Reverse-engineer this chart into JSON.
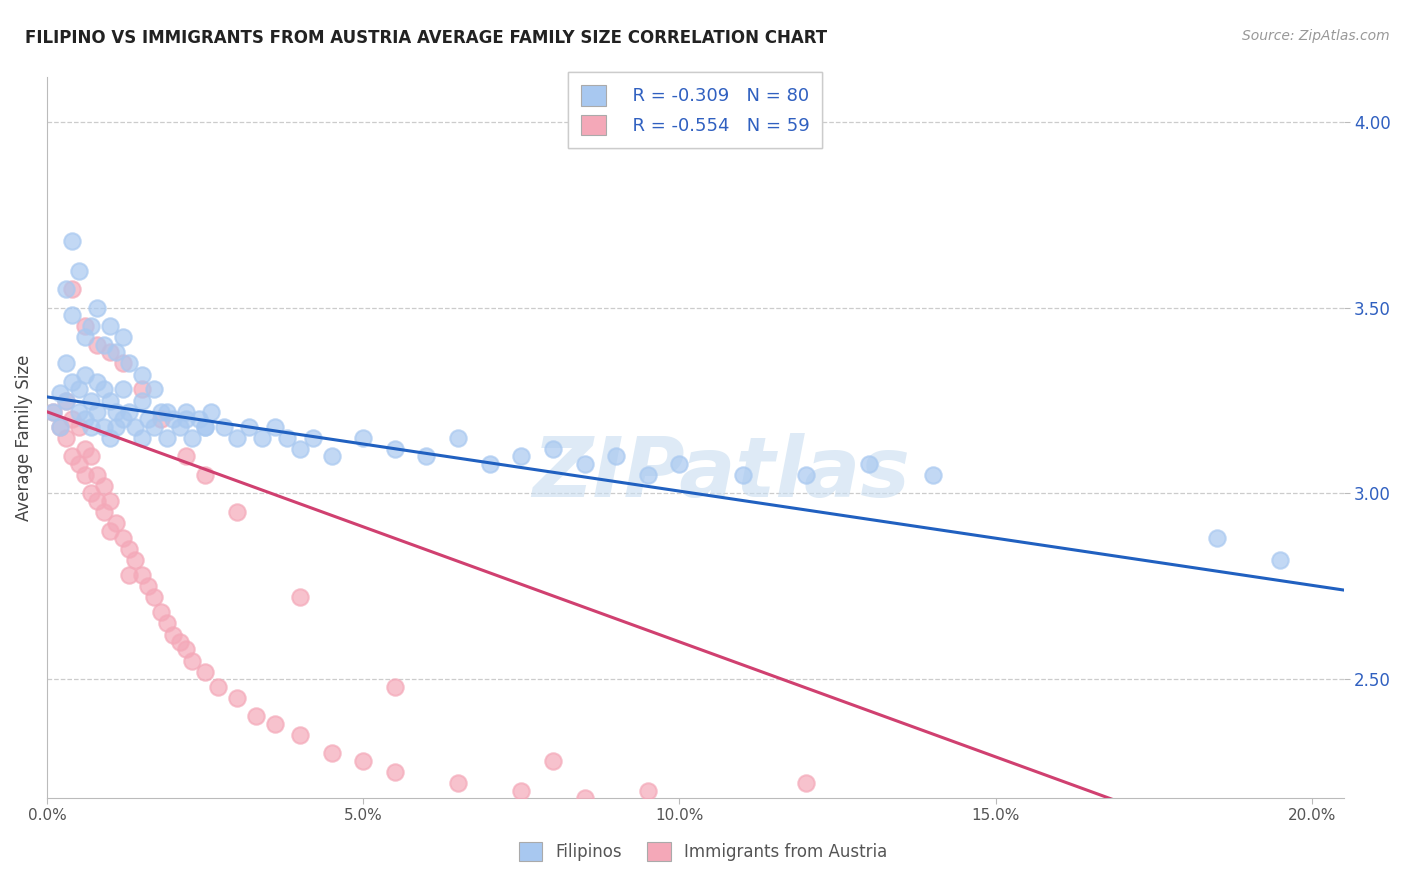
{
  "title": "FILIPINO VS IMMIGRANTS FROM AUSTRIA AVERAGE FAMILY SIZE CORRELATION CHART",
  "source_text": "Source: ZipAtlas.com",
  "ylabel": "Average Family Size",
  "xlim": [
    0.0,
    0.205
  ],
  "ylim": [
    2.18,
    4.12
  ],
  "yticks_right": [
    2.5,
    3.0,
    3.5,
    4.0
  ],
  "xticks": [
    0.0,
    0.05,
    0.1,
    0.15,
    0.2
  ],
  "xticklabels": [
    "0.0%",
    "5.0%",
    "10.0%",
    "15.0%",
    "20.0%"
  ],
  "blue_R": -0.309,
  "blue_N": 80,
  "pink_R": -0.554,
  "pink_N": 59,
  "legend_label_blue": "Filipinos",
  "legend_label_pink": "Immigrants from Austria",
  "watermark": "ZIPatlas",
  "blue_fill": "#a8c8f0",
  "pink_fill": "#f4a8b8",
  "blue_line": "#2060c0",
  "pink_line": "#d04070",
  "legend_color": "#3060c0",
  "blue_scatter_x": [
    0.001,
    0.002,
    0.002,
    0.003,
    0.003,
    0.004,
    0.005,
    0.005,
    0.006,
    0.006,
    0.007,
    0.007,
    0.008,
    0.008,
    0.009,
    0.009,
    0.01,
    0.01,
    0.011,
    0.011,
    0.012,
    0.012,
    0.013,
    0.014,
    0.015,
    0.015,
    0.016,
    0.017,
    0.018,
    0.019,
    0.02,
    0.021,
    0.022,
    0.023,
    0.024,
    0.025,
    0.026,
    0.028,
    0.03,
    0.032,
    0.034,
    0.036,
    0.038,
    0.04,
    0.042,
    0.045,
    0.05,
    0.055,
    0.06,
    0.065,
    0.07,
    0.075,
    0.08,
    0.085,
    0.09,
    0.095,
    0.1,
    0.11,
    0.12,
    0.13,
    0.14,
    0.003,
    0.004,
    0.006,
    0.008,
    0.01,
    0.012,
    0.004,
    0.005,
    0.007,
    0.009,
    0.011,
    0.013,
    0.015,
    0.017,
    0.019,
    0.022,
    0.025,
    0.185,
    0.195
  ],
  "blue_scatter_y": [
    3.22,
    3.27,
    3.18,
    3.35,
    3.25,
    3.3,
    3.22,
    3.28,
    3.2,
    3.32,
    3.25,
    3.18,
    3.3,
    3.22,
    3.28,
    3.18,
    3.25,
    3.15,
    3.22,
    3.18,
    3.28,
    3.2,
    3.22,
    3.18,
    3.25,
    3.15,
    3.2,
    3.18,
    3.22,
    3.15,
    3.2,
    3.18,
    3.22,
    3.15,
    3.2,
    3.18,
    3.22,
    3.18,
    3.15,
    3.18,
    3.15,
    3.18,
    3.15,
    3.12,
    3.15,
    3.1,
    3.15,
    3.12,
    3.1,
    3.15,
    3.08,
    3.1,
    3.12,
    3.08,
    3.1,
    3.05,
    3.08,
    3.05,
    3.05,
    3.08,
    3.05,
    3.55,
    3.48,
    3.42,
    3.5,
    3.45,
    3.42,
    3.68,
    3.6,
    3.45,
    3.4,
    3.38,
    3.35,
    3.32,
    3.28,
    3.22,
    3.2,
    3.18,
    2.88,
    2.82
  ],
  "pink_scatter_x": [
    0.001,
    0.002,
    0.003,
    0.003,
    0.004,
    0.004,
    0.005,
    0.005,
    0.006,
    0.006,
    0.007,
    0.007,
    0.008,
    0.008,
    0.009,
    0.009,
    0.01,
    0.01,
    0.011,
    0.012,
    0.013,
    0.013,
    0.014,
    0.015,
    0.016,
    0.017,
    0.018,
    0.019,
    0.02,
    0.021,
    0.022,
    0.023,
    0.025,
    0.027,
    0.03,
    0.033,
    0.036,
    0.04,
    0.045,
    0.05,
    0.055,
    0.065,
    0.075,
    0.085,
    0.095,
    0.004,
    0.006,
    0.008,
    0.01,
    0.012,
    0.015,
    0.018,
    0.022,
    0.025,
    0.03,
    0.04,
    0.055,
    0.08,
    0.12
  ],
  "pink_scatter_y": [
    3.22,
    3.18,
    3.25,
    3.15,
    3.2,
    3.1,
    3.18,
    3.08,
    3.12,
    3.05,
    3.1,
    3.0,
    3.05,
    2.98,
    3.02,
    2.95,
    2.98,
    2.9,
    2.92,
    2.88,
    2.85,
    2.78,
    2.82,
    2.78,
    2.75,
    2.72,
    2.68,
    2.65,
    2.62,
    2.6,
    2.58,
    2.55,
    2.52,
    2.48,
    2.45,
    2.4,
    2.38,
    2.35,
    2.3,
    2.28,
    2.25,
    2.22,
    2.2,
    2.18,
    2.2,
    3.55,
    3.45,
    3.4,
    3.38,
    3.35,
    3.28,
    3.2,
    3.1,
    3.05,
    2.95,
    2.72,
    2.48,
    2.28,
    2.22
  ]
}
